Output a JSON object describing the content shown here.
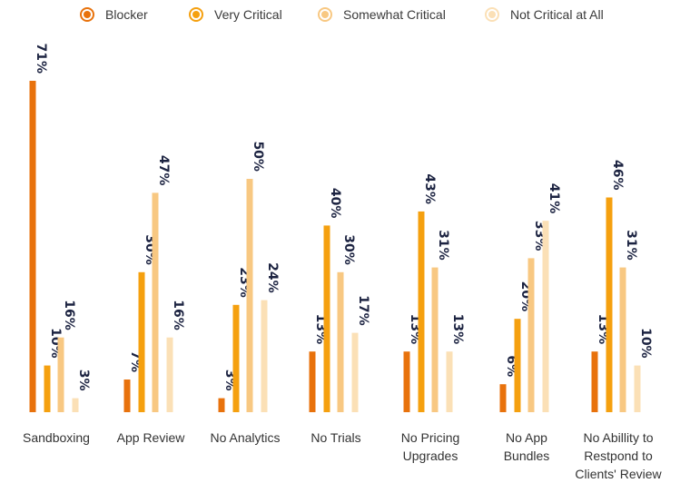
{
  "chart_data": {
    "type": "bar",
    "categories": [
      [
        "Sandboxing"
      ],
      [
        "App Review"
      ],
      [
        "No Analytics"
      ],
      [
        "No Trials"
      ],
      [
        "No Pricing",
        "Upgrades"
      ],
      [
        "No App",
        "Bundles"
      ],
      [
        "No Abillity to",
        "Restpond to",
        "Clients' Review"
      ]
    ],
    "series": [
      {
        "name": "Blocker",
        "color": "#e8720c",
        "values": [
          71,
          7,
          3,
          13,
          13,
          6,
          13
        ]
      },
      {
        "name": "Very Critical",
        "color": "#f5a00f",
        "values": [
          10,
          30,
          23,
          40,
          43,
          20,
          46
        ]
      },
      {
        "name": "Somewhat Critical",
        "color": "#f8c882",
        "values": [
          16,
          47,
          50,
          30,
          31,
          33,
          31
        ]
      },
      {
        "name": "Not Critical at All",
        "color": "#fbe0b6",
        "values": [
          3,
          16,
          24,
          17,
          13,
          41,
          10
        ]
      }
    ],
    "value_suffix": "%",
    "ylim": [
      0,
      71
    ],
    "grid": false,
    "legend_position": "top"
  }
}
